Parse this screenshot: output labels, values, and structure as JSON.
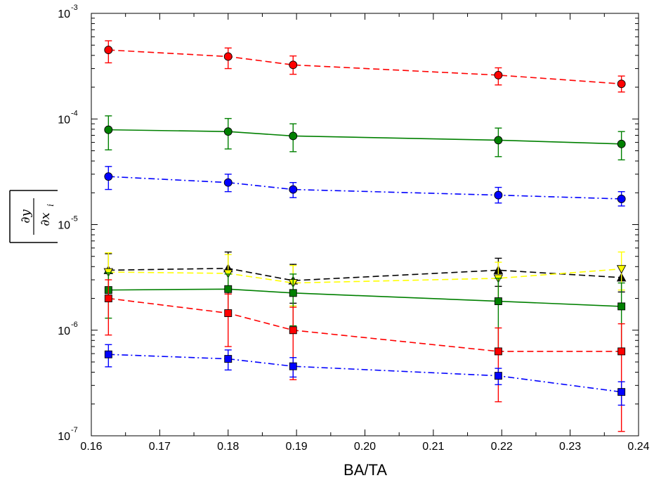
{
  "chart_data": {
    "type": "scatter",
    "title": "",
    "xlabel": "BA/TA",
    "ylabel": "|∂y/∂x_i|",
    "ylabel_parts": {
      "numerator": "∂y",
      "denominator": "∂x",
      "subscript": "i"
    },
    "xlim": [
      0.16,
      0.24
    ],
    "ylim": [
      1e-07,
      0.001
    ],
    "yscale": "log",
    "grid": false,
    "legend": "none",
    "x": [
      0.1625,
      0.18,
      0.1895,
      0.2195,
      0.2375
    ],
    "xticks": [
      {
        "value": 0.16,
        "label": "0.16"
      },
      {
        "value": 0.17,
        "label": "0.17"
      },
      {
        "value": 0.18,
        "label": "0.18"
      },
      {
        "value": 0.19,
        "label": "0.19"
      },
      {
        "value": 0.2,
        "label": "0.20"
      },
      {
        "value": 0.21,
        "label": "0.21"
      },
      {
        "value": 0.22,
        "label": "0.22"
      },
      {
        "value": 0.23,
        "label": "0.23"
      },
      {
        "value": 0.24,
        "label": "0.24"
      }
    ],
    "yticks": [
      {
        "value": 1e-07,
        "base": "10",
        "exp": "-7"
      },
      {
        "value": 1e-06,
        "base": "10",
        "exp": "-6"
      },
      {
        "value": 1e-05,
        "base": "10",
        "exp": "-5"
      },
      {
        "value": 0.0001,
        "base": "10",
        "exp": "-4"
      },
      {
        "value": 0.001,
        "base": "10",
        "exp": "-3"
      }
    ],
    "series": [
      {
        "color": "#ff0000",
        "marker": "circle",
        "line": "dashed",
        "values": [
          0.00045,
          0.00039,
          0.000325,
          0.00026,
          0.000215
        ],
        "err_low": [
          0.00034,
          0.0003,
          0.000265,
          0.00021,
          0.00018
        ],
        "err_high": [
          0.00055,
          0.00047,
          0.000395,
          0.000305,
          0.000255
        ]
      },
      {
        "color": "#008000",
        "marker": "circle",
        "line": "solid",
        "values": [
          7.9e-05,
          7.6e-05,
          6.9e-05,
          6.3e-05,
          5.8e-05
        ],
        "err_low": [
          5.1e-05,
          5.2e-05,
          4.9e-05,
          4.4e-05,
          4.1e-05
        ],
        "err_high": [
          0.000107,
          0.000101,
          9e-05,
          8.2e-05,
          7.6e-05
        ]
      },
      {
        "color": "#0000ff",
        "marker": "circle",
        "line": "dashdot",
        "values": [
          2.85e-05,
          2.5e-05,
          2.15e-05,
          1.9e-05,
          1.75e-05
        ],
        "err_low": [
          2.15e-05,
          2.05e-05,
          1.8e-05,
          1.6e-05,
          1.5e-05
        ],
        "err_high": [
          3.55e-05,
          3e-05,
          2.5e-05,
          2.25e-05,
          2.05e-05
        ]
      },
      {
        "color": "#000000",
        "marker": "triangle-up",
        "line": "dashed",
        "values": [
          3.7e-06,
          3.85e-06,
          2.95e-06,
          3.7e-06,
          3.15e-06
        ],
        "err_low": [
          2e-06,
          2.2e-06,
          1.8e-06,
          2.6e-06,
          2.3e-06
        ],
        "err_high": [
          5.3e-06,
          5.5e-06,
          4.2e-06,
          4.8e-06,
          4e-06
        ]
      },
      {
        "color": "#ffff00",
        "marker": "triangle-down",
        "line": "dashed",
        "values": [
          3.55e-06,
          3.45e-06,
          2.8e-06,
          3.1e-06,
          3.8e-06
        ],
        "err_low": [
          2.1e-06,
          2.4e-06,
          1.7e-06,
          2e-06,
          2.4e-06
        ],
        "err_high": [
          5.4e-06,
          5.2e-06,
          4.1e-06,
          4.4e-06,
          5.5e-06
        ]
      },
      {
        "color": "#008000",
        "marker": "square",
        "line": "solid",
        "values": [
          2.4e-06,
          2.45e-06,
          2.25e-06,
          1.88e-06,
          1.68e-06
        ],
        "err_low": [
          1.3e-06,
          1.5e-06,
          1.1e-06,
          6.5e-07,
          6.2e-07
        ],
        "err_high": [
          3.5e-06,
          3.4e-06,
          3.4e-06,
          3.1e-06,
          2.8e-06
        ]
      },
      {
        "color": "#ff0000",
        "marker": "square",
        "line": "dashed",
        "values": [
          2e-06,
          1.45e-06,
          1e-06,
          6.3e-07,
          6.3e-07
        ],
        "err_low": [
          9e-07,
          7e-07,
          3.4e-07,
          2.1e-07,
          1.1e-07
        ],
        "err_high": [
          3e-06,
          2.2e-06,
          1.65e-06,
          1.05e-06,
          1.15e-06
        ]
      },
      {
        "color": "#0000ff",
        "marker": "square",
        "line": "dashdot",
        "values": [
          5.9e-07,
          5.35e-07,
          4.55e-07,
          3.7e-07,
          2.6e-07
        ],
        "err_low": [
          4.5e-07,
          4.2e-07,
          3.6e-07,
          3.05e-07,
          1.95e-07
        ],
        "err_high": [
          7.3e-07,
          6.5e-07,
          5.5e-07,
          4.35e-07,
          3.25e-07
        ]
      }
    ]
  }
}
